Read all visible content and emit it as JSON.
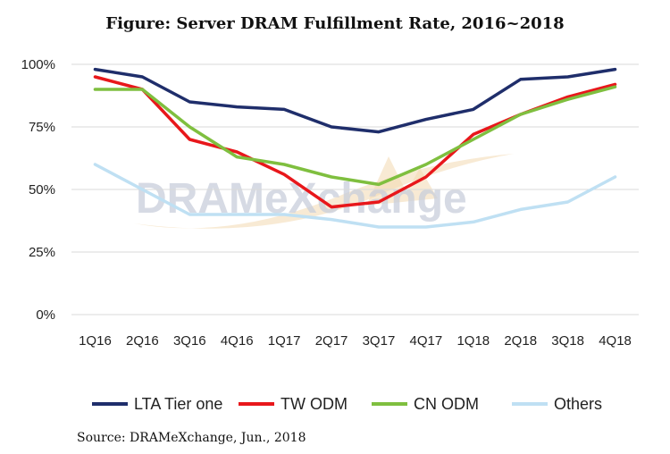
{
  "chart_data": {
    "type": "line",
    "title": "Figure: Server DRAM Fulfillment Rate, 2016~2018",
    "categories": [
      "1Q16",
      "2Q16",
      "3Q16",
      "4Q16",
      "1Q17",
      "2Q17",
      "3Q17",
      "4Q17",
      "1Q18",
      "2Q18",
      "3Q18",
      "4Q18"
    ],
    "y_ticks": [
      "0%",
      "25%",
      "50%",
      "75%",
      "100%"
    ],
    "ylim": [
      0,
      100
    ],
    "grid": true,
    "legend_position": "bottom",
    "series": [
      {
        "name": "LTA Tier one",
        "color": "#1f2e6b",
        "values": [
          98,
          95,
          85,
          83,
          82,
          75,
          73,
          78,
          82,
          94,
          95,
          98
        ]
      },
      {
        "name": "TW ODM",
        "color": "#e8171b",
        "values": [
          95,
          90,
          70,
          65,
          56,
          43,
          45,
          55,
          72,
          80,
          87,
          92
        ]
      },
      {
        "name": "CN ODM",
        "color": "#7fbf3f",
        "values": [
          90,
          90,
          75,
          63,
          60,
          55,
          52,
          60,
          70,
          80,
          86,
          91
        ]
      },
      {
        "name": "Others",
        "color": "#bfe0f3",
        "values": [
          60,
          50,
          40,
          40,
          40,
          38,
          35,
          35,
          37,
          42,
          45,
          55
        ]
      }
    ],
    "watermark": "DRAMeXchange"
  },
  "source": "Source: DRAMeXchange, Jun., 2018"
}
